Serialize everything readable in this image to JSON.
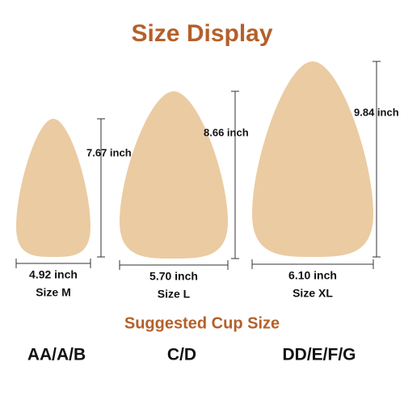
{
  "title": "Size Display",
  "sizes": [
    {
      "height": "7.67 inch",
      "width": "4.92 inch",
      "size": "Size M"
    },
    {
      "height": "8.66 inch",
      "width": "5.70 inch",
      "size": "Size L"
    },
    {
      "height": "9.84 inch",
      "width": "6.10 inch",
      "size": "Size XL"
    }
  ],
  "subtitle": "Suggested Cup Size",
  "cup_sizes": [
    "AA/A/B",
    "C/D",
    "DD/E/F/G"
  ]
}
